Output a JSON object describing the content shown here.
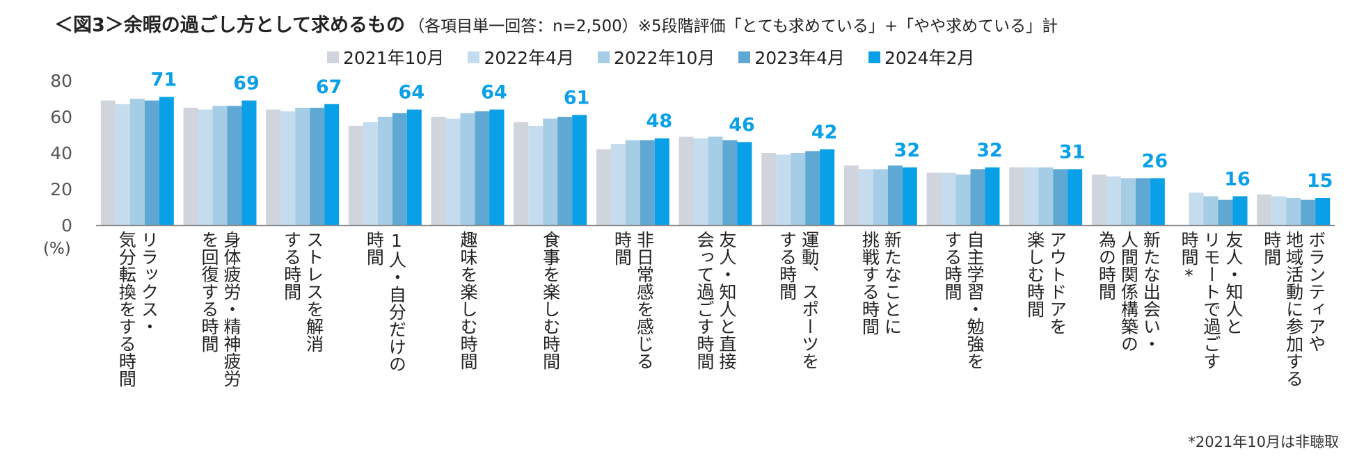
{
  "title": "＜図3＞余暇の過ごし方として求めるもの",
  "subtitle": "（各項目単一回答：n=2,500）※5段階評価「とても求めている」+「やや求めている」計",
  "footnote": "*2021年10月は非聴取",
  "unit": "(%)",
  "colors": {
    "series": [
      "#d0d4dc",
      "#c5dcee",
      "#a6cde6",
      "#5fa8d3",
      "#0aa0e8"
    ],
    "value_label": "#0aa0e8",
    "axis_text": "#555555",
    "axis_line": "#888888"
  },
  "chart_data": {
    "type": "bar",
    "title": "＜図3＞余暇の過ごし方として求めるもの",
    "ylabel": "(%)",
    "ylim": [
      0,
      80
    ],
    "yticks": [
      0,
      20,
      40,
      60,
      80
    ],
    "legend_position": "top",
    "categories": [
      "リラックス・\n気分転換をする時間",
      "身体疲労・精神疲労\nを回復する時間",
      "ストレスを解消\nする時間",
      "1人・自分だけの\n時間",
      "趣味を楽しむ時間",
      "食事を楽しむ時間",
      "非日常感を感じる\n時間",
      "友人・知人と直接\n会って過ごす時間",
      "運動、スポーツを\nする時間",
      "新たなことに\n挑戦する時間",
      "自主学習・勉強を\nする時間",
      "アウトドアを\n楽しむ時間",
      "新たな出会い・\n人間関係構築の\n為の時間",
      "友人・知人と\nリモートで過ごす\n時間*",
      "ボランティアや\n地域活動に参加する\n時間"
    ],
    "series": [
      {
        "name": "2021年10月",
        "values": [
          69,
          65,
          64,
          55,
          60,
          57,
          42,
          49,
          40,
          33,
          29,
          32,
          28,
          null,
          17
        ]
      },
      {
        "name": "2022年4月",
        "values": [
          67,
          64,
          63,
          57,
          59,
          55,
          45,
          48,
          39,
          31,
          29,
          32,
          27,
          18,
          16
        ]
      },
      {
        "name": "2022年10月",
        "values": [
          70,
          66,
          65,
          60,
          62,
          59,
          47,
          49,
          40,
          31,
          28,
          32,
          26,
          16,
          15
        ]
      },
      {
        "name": "2023年4月",
        "values": [
          69,
          66,
          65,
          62,
          63,
          60,
          47,
          47,
          41,
          33,
          31,
          31,
          26,
          14,
          14
        ]
      },
      {
        "name": "2024年2月",
        "values": [
          71,
          69,
          67,
          64,
          64,
          61,
          48,
          46,
          42,
          32,
          32,
          31,
          26,
          16,
          15
        ]
      }
    ],
    "value_labels": [
      "71",
      "69",
      "67",
      "64",
      "64",
      "61",
      "48",
      "46",
      "42",
      "32",
      "32",
      "31",
      "26",
      "16",
      "15"
    ]
  }
}
